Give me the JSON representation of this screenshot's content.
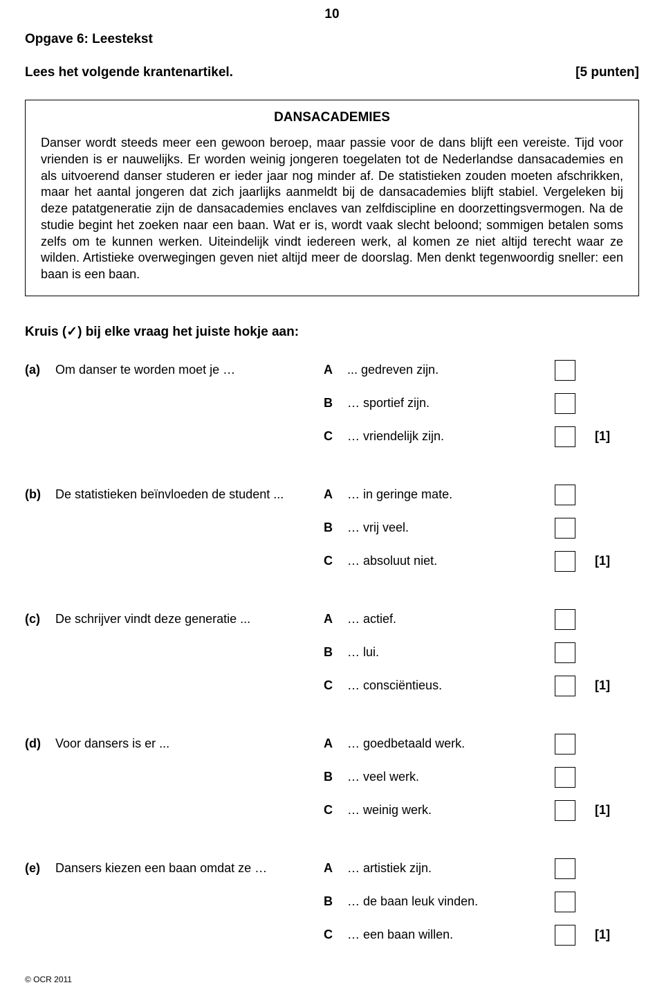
{
  "pageNumber": "10",
  "heading": "Opgave 6: Leestekst",
  "subheading": "Lees het volgende krantenartikel.",
  "points": "[5 punten]",
  "article": {
    "title": "DANSACADEMIES",
    "body": "Danser wordt steeds meer een gewoon beroep, maar passie voor de dans blijft een vereiste. Tijd voor vrienden is er nauwelijks. Er worden weinig jongeren toegelaten tot de Nederlandse dansacademies en als uitvoerend danser studeren er ieder jaar nog minder af. De statistieken zouden moeten afschrikken, maar het aantal jongeren dat zich jaarlijks aanmeldt bij de dansacademies blijft stabiel. Vergeleken bij deze patatgeneratie zijn de dansacademies enclaves van zelfdiscipline en doorzettingsvermogen. Na de studie begint het zoeken naar een baan. Wat er is, wordt vaak slecht beloond; sommigen betalen soms zelfs om te kunnen werken. Uiteindelijk vindt iedereen werk, al komen ze niet altijd terecht waar ze wilden. Artistieke overwegingen geven niet altijd meer de doorslag. Men denkt tegenwoordig sneller: een baan is een baan."
  },
  "instruction": "Kruis (✓) bij elke vraag het juiste hokje aan:",
  "questions": [
    {
      "label": "(a)",
      "stem": "Om danser te worden moet je …",
      "options": [
        {
          "letter": "A",
          "text": "... gedreven zijn."
        },
        {
          "letter": "B",
          "text": "… sportief zijn."
        },
        {
          "letter": "C",
          "text": "… vriendelijk zijn."
        }
      ],
      "mark": "[1]"
    },
    {
      "label": "(b)",
      "stem": "De statistieken beïnvloeden de student ...",
      "options": [
        {
          "letter": "A",
          "text": "… in geringe mate."
        },
        {
          "letter": "B",
          "text": "… vrij veel."
        },
        {
          "letter": "C",
          "text": "… absoluut niet."
        }
      ],
      "mark": "[1]"
    },
    {
      "label": "(c)",
      "stem": "De schrijver vindt deze generatie ...",
      "options": [
        {
          "letter": "A",
          "text": "… actief."
        },
        {
          "letter": "B",
          "text": "… lui."
        },
        {
          "letter": "C",
          "text": "… consciëntieus."
        }
      ],
      "mark": "[1]"
    },
    {
      "label": "(d)",
      "stem": "Voor dansers is er ...",
      "options": [
        {
          "letter": "A",
          "text": "… goedbetaald werk."
        },
        {
          "letter": "B",
          "text": "… veel werk."
        },
        {
          "letter": "C",
          "text": "… weinig werk."
        }
      ],
      "mark": "[1]"
    },
    {
      "label": "(e)",
      "stem": "Dansers kiezen een baan omdat ze …",
      "options": [
        {
          "letter": "A",
          "text": "… artistiek zijn."
        },
        {
          "letter": "B",
          "text": "… de baan leuk vinden."
        },
        {
          "letter": "C",
          "text": "… een baan willen."
        }
      ],
      "mark": "[1]"
    }
  ],
  "footer": "© OCR 2011"
}
